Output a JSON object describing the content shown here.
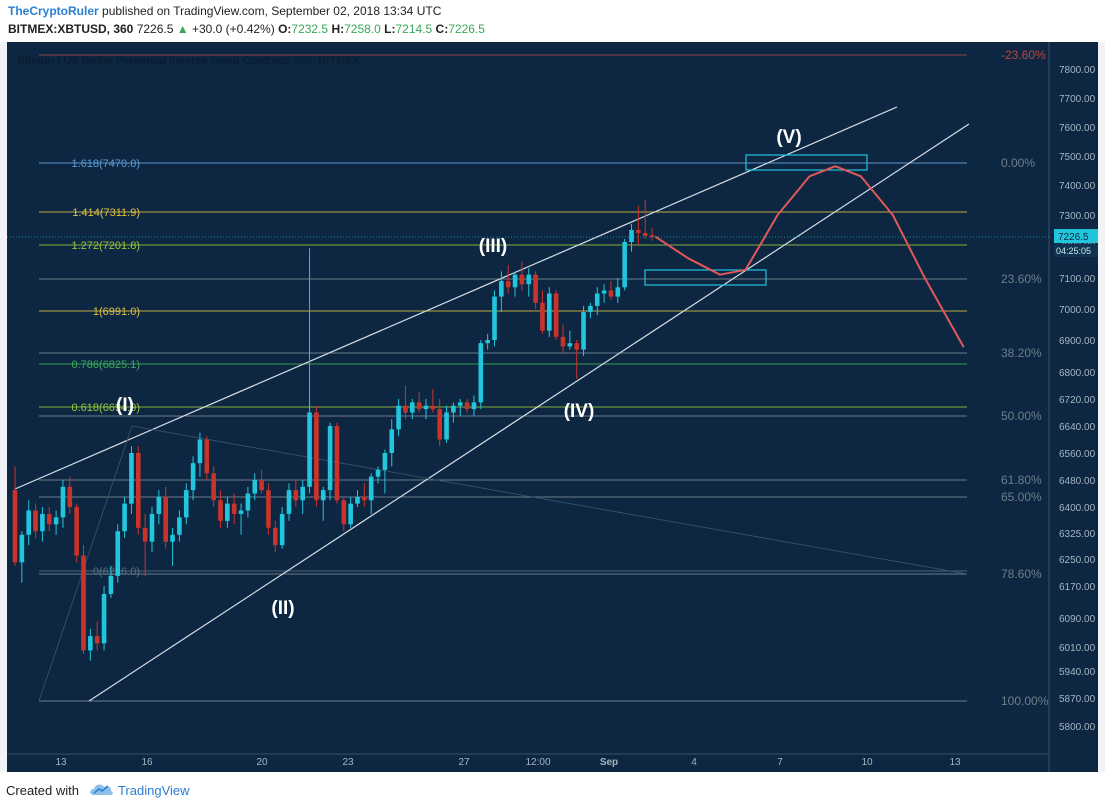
{
  "header": {
    "author": "TheCryptoRuler",
    "published_text": "published on TradingView.com, September 02, 2018 13:34 UTC",
    "symbol": "BITMEX:XBTUSD, 360",
    "last": "7226.5",
    "change_arrow": "▲",
    "change": "+30.0 (+0.42%)",
    "o_label": "O:",
    "o_value": "7232.5",
    "h_label": "H:",
    "h_value": "7258.0",
    "l_label": "L:",
    "l_value": "7214.5",
    "c_label": "C:",
    "c_value": "7226.5"
  },
  "chart_data": {
    "type": "candlestick",
    "title": "Bitcoin / US Dollar Perpetual Inverse Swap Contract, 360, BITMEX",
    "x_tick_labels": [
      "13",
      "16",
      "20",
      "23",
      "27",
      "12:00",
      "Sep",
      "4",
      "7",
      "10",
      "13"
    ],
    "y_tick_labels": [
      "7800.00",
      "7700.00",
      "7600.00",
      "7500.00",
      "7400.00",
      "7300.00",
      "7200.00",
      "7100.00",
      "7000.00",
      "6900.00",
      "6800.00",
      "6720.00",
      "6640.00",
      "6560.00",
      "6480.00",
      "6400.00",
      "6325.00",
      "6250.00",
      "6170.00",
      "6090.00",
      "6010.00",
      "5940.00",
      "5870.00",
      "5800.00"
    ],
    "last_price_label": "7226.5",
    "countdown_label": "04:25:05",
    "fib_retracement_levels": [
      "-23.60%",
      "0.00%",
      "23.60%",
      "38.20%",
      "50.00%",
      "61.80%",
      "65.00%",
      "78.60%",
      "100.00%"
    ],
    "fib_extension_levels": [
      {
        "label": "1.618(7470.0)",
        "color": "#5b9bd5"
      },
      {
        "label": "1.414(7311.9)",
        "color": "#e0c040"
      },
      {
        "label": "1.272(7201.8)",
        "color": "#9ac53a"
      },
      {
        "label": "1(6991.0)",
        "color": "#e0c040"
      },
      {
        "label": "0.786(6825.1)",
        "color": "#3cae5a"
      },
      {
        "label": "0.618(6694.9)",
        "color": "#9ac53a"
      },
      {
        "label": "0(6216.0)",
        "color": "#5b6f80"
      }
    ],
    "wave_labels": [
      "(I)",
      "(II)",
      "(III)",
      "(IV)",
      "(V)"
    ],
    "candles": [
      [
        6450,
        6520,
        6230,
        6240
      ],
      [
        6240,
        6330,
        6180,
        6320
      ],
      [
        6320,
        6420,
        6290,
        6390
      ],
      [
        6390,
        6410,
        6310,
        6330
      ],
      [
        6330,
        6400,
        6300,
        6380
      ],
      [
        6380,
        6400,
        6330,
        6350
      ],
      [
        6350,
        6390,
        6320,
        6370
      ],
      [
        6370,
        6480,
        6340,
        6460
      ],
      [
        6460,
        6490,
        6380,
        6400
      ],
      [
        6400,
        6410,
        6240,
        6260
      ],
      [
        6260,
        6290,
        5990,
        6000
      ],
      [
        6000,
        6060,
        5970,
        6040
      ],
      [
        6040,
        6080,
        6000,
        6020
      ],
      [
        6020,
        6170,
        6000,
        6150
      ],
      [
        6150,
        6230,
        6140,
        6200
      ],
      [
        6200,
        6350,
        6180,
        6330
      ],
      [
        6330,
        6430,
        6310,
        6410
      ],
      [
        6410,
        6580,
        6380,
        6560
      ],
      [
        6560,
        6580,
        6320,
        6340
      ],
      [
        6340,
        6380,
        6200,
        6300
      ],
      [
        6300,
        6400,
        6270,
        6380
      ],
      [
        6380,
        6450,
        6350,
        6430
      ],
      [
        6430,
        6460,
        6280,
        6300
      ],
      [
        6300,
        6340,
        6230,
        6320
      ],
      [
        6320,
        6390,
        6300,
        6370
      ],
      [
        6370,
        6470,
        6350,
        6450
      ],
      [
        6450,
        6550,
        6420,
        6530
      ],
      [
        6530,
        6620,
        6490,
        6600
      ],
      [
        6600,
        6610,
        6480,
        6500
      ],
      [
        6500,
        6520,
        6400,
        6420
      ],
      [
        6420,
        6450,
        6340,
        6360
      ],
      [
        6360,
        6430,
        6340,
        6410
      ],
      [
        6410,
        6440,
        6350,
        6380
      ],
      [
        6380,
        6410,
        6320,
        6390
      ],
      [
        6390,
        6460,
        6370,
        6440
      ],
      [
        6440,
        6500,
        6420,
        6480
      ],
      [
        6480,
        6510,
        6440,
        6450
      ],
      [
        6450,
        6470,
        6320,
        6340
      ],
      [
        6340,
        6360,
        6270,
        6290
      ],
      [
        6290,
        6400,
        6280,
        6380
      ],
      [
        6380,
        6470,
        6360,
        6450
      ],
      [
        6450,
        6480,
        6400,
        6420
      ],
      [
        6420,
        6480,
        6380,
        6460
      ],
      [
        6460,
        7190,
        6440,
        6680
      ],
      [
        6680,
        6700,
        6400,
        6420
      ],
      [
        6420,
        6460,
        6360,
        6450
      ],
      [
        6450,
        6650,
        6420,
        6640
      ],
      [
        6640,
        6650,
        6410,
        6420
      ],
      [
        6420,
        6430,
        6330,
        6350
      ],
      [
        6350,
        6430,
        6340,
        6410
      ],
      [
        6410,
        6450,
        6400,
        6430
      ],
      [
        6430,
        6470,
        6400,
        6420
      ],
      [
        6420,
        6500,
        6380,
        6490
      ],
      [
        6490,
        6520,
        6470,
        6510
      ],
      [
        6510,
        6570,
        6440,
        6560
      ],
      [
        6560,
        6660,
        6520,
        6630
      ],
      [
        6630,
        6720,
        6610,
        6700
      ],
      [
        6700,
        6760,
        6660,
        6680
      ],
      [
        6680,
        6720,
        6660,
        6710
      ],
      [
        6710,
        6740,
        6680,
        6690
      ],
      [
        6690,
        6720,
        6660,
        6700
      ],
      [
        6700,
        6750,
        6680,
        6690
      ],
      [
        6690,
        6720,
        6580,
        6600
      ],
      [
        6600,
        6700,
        6590,
        6680
      ],
      [
        6680,
        6710,
        6650,
        6700
      ],
      [
        6700,
        6720,
        6670,
        6710
      ],
      [
        6710,
        6720,
        6680,
        6690
      ],
      [
        6690,
        6730,
        6670,
        6710
      ],
      [
        6710,
        6900,
        6690,
        6890
      ],
      [
        6890,
        6920,
        6870,
        6900
      ],
      [
        6900,
        7060,
        6880,
        7040
      ],
      [
        7040,
        7120,
        6990,
        7090
      ],
      [
        7090,
        7140,
        7050,
        7070
      ],
      [
        7070,
        7120,
        7040,
        7110
      ],
      [
        7110,
        7150,
        7060,
        7080
      ],
      [
        7080,
        7130,
        7040,
        7110
      ],
      [
        7110,
        7120,
        7000,
        7020
      ],
      [
        7020,
        7060,
        6920,
        6930
      ],
      [
        6930,
        7070,
        6910,
        7050
      ],
      [
        7050,
        7060,
        6900,
        6910
      ],
      [
        6910,
        6950,
        6860,
        6880
      ],
      [
        6880,
        6930,
        6870,
        6890
      ],
      [
        6890,
        6900,
        6780,
        6870
      ],
      [
        6870,
        7010,
        6850,
        6990
      ],
      [
        6990,
        7020,
        6970,
        7010
      ],
      [
        7010,
        7070,
        6980,
        7050
      ],
      [
        7050,
        7080,
        7020,
        7060
      ],
      [
        7060,
        7090,
        7030,
        7040
      ],
      [
        7040,
        7100,
        7020,
        7070
      ],
      [
        7070,
        7220,
        7060,
        7210
      ],
      [
        7210,
        7270,
        7180,
        7250
      ],
      [
        7250,
        7330,
        7200,
        7240
      ],
      [
        7240,
        7350,
        7220,
        7230
      ],
      [
        7232.5,
        7258,
        7214.5,
        7226.5
      ]
    ],
    "projection": [
      [
        7226.5,
        0
      ],
      [
        7160,
        5
      ],
      [
        7110,
        10
      ],
      [
        7125,
        14
      ],
      [
        7300,
        19
      ],
      [
        7430,
        24
      ],
      [
        7465,
        28
      ],
      [
        7430,
        32
      ],
      [
        7300,
        37
      ],
      [
        7100,
        42
      ],
      [
        6880,
        48
      ]
    ],
    "price_range": [
      5750,
      7870
    ]
  },
  "footer": {
    "created_with": "Created with",
    "brand": "TradingView"
  },
  "colors": {
    "background": "#0d2742",
    "up": "#21c6dd",
    "down": "#c8342c",
    "fib_line": "#8c98a4",
    "channel": "#d8dde2",
    "projection": "#e0585a",
    "box": "#1fc3e0"
  }
}
